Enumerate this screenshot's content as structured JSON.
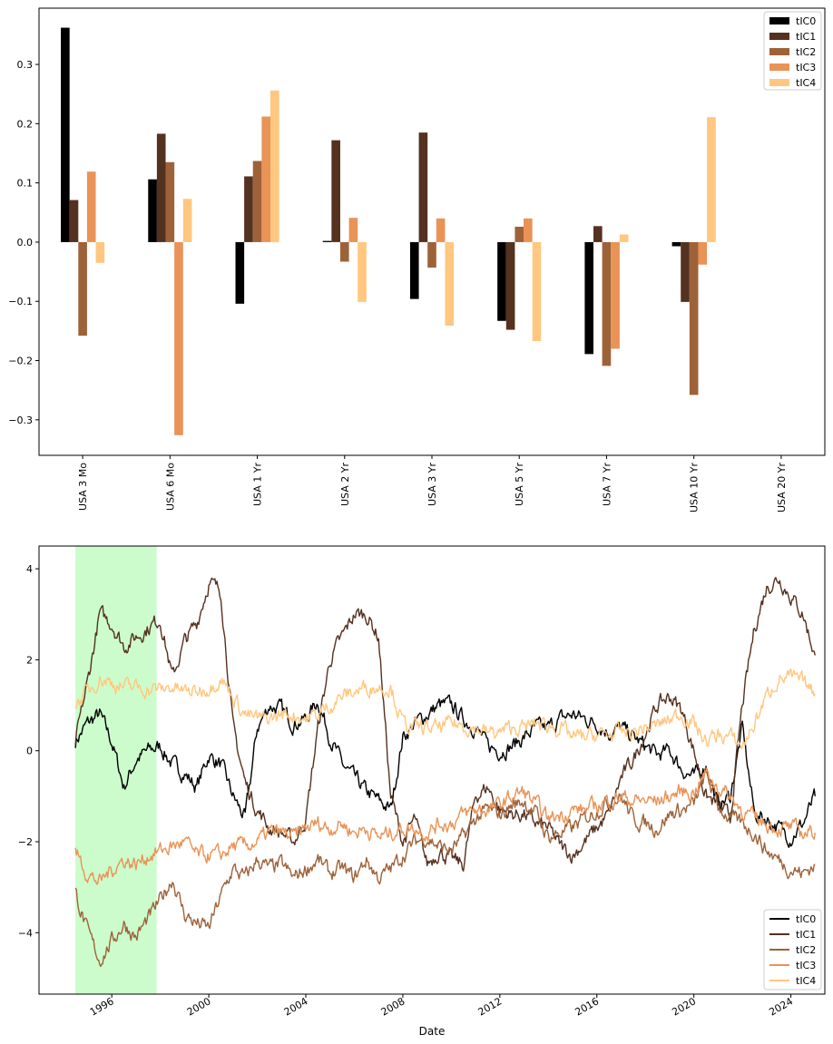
{
  "chart_data": [
    {
      "type": "bar",
      "title": "",
      "xlabel": "",
      "ylabel": "",
      "ylim": [
        -0.36,
        0.395
      ],
      "yticks": [
        -0.3,
        -0.2,
        -0.1,
        0.0,
        0.1,
        0.2,
        0.3
      ],
      "ytick_labels": [
        "−0.3",
        "−0.2",
        "−0.1",
        "0.0",
        "0.1",
        "0.2",
        "0.3"
      ],
      "grid": false,
      "legend_position": "top-right",
      "categories": [
        "USA 3 Mo",
        "USA 6 Mo",
        "USA 1 Yr",
        "USA 2 Yr",
        "USA 3 Yr",
        "USA 5 Yr",
        "USA 7 Yr",
        "USA 10 Yr",
        "USA 20 Yr"
      ],
      "series": [
        {
          "name": "tIC0",
          "color": "#000000",
          "values": [
            0.362,
            0.106,
            -0.104,
            0.002,
            -0.096,
            -0.133,
            -0.189,
            -0.007,
            0.0
          ]
        },
        {
          "name": "tIC1",
          "color": "#55311f",
          "values": [
            0.071,
            0.183,
            0.111,
            0.172,
            0.185,
            -0.148,
            0.027,
            -0.101,
            0.0
          ]
        },
        {
          "name": "tIC2",
          "color": "#9e6239",
          "values": [
            -0.158,
            0.135,
            0.137,
            -0.033,
            -0.043,
            0.026,
            -0.209,
            -0.258,
            0.0
          ]
        },
        {
          "name": "tIC3",
          "color": "#e99357",
          "values": [
            0.119,
            -0.326,
            0.212,
            0.041,
            0.04,
            0.04,
            -0.18,
            -0.038,
            0.0
          ]
        },
        {
          "name": "tIC4",
          "color": "#ffc77f",
          "values": [
            -0.035,
            0.073,
            0.256,
            -0.101,
            -0.141,
            -0.167,
            0.013,
            0.211,
            0.0
          ]
        }
      ]
    },
    {
      "type": "line",
      "title": "",
      "xlabel": "Date",
      "ylabel": "",
      "xlim": [
        1993.0,
        2025.4
      ],
      "ylim": [
        -5.35,
        4.5
      ],
      "xticks": [
        1996,
        2000,
        2004,
        2008,
        2012,
        2016,
        2020,
        2024
      ],
      "xtick_labels": [
        "1996",
        "2000",
        "2004",
        "2008",
        "2012",
        "2016",
        "2020",
        "2024"
      ],
      "yticks": [
        -4,
        -2,
        0,
        2,
        4
      ],
      "ytick_labels": [
        "−4",
        "−2",
        "0",
        "2",
        "4"
      ],
      "grid": false,
      "legend_position": "bottom-right",
      "highlight_span": {
        "start": 1994.5,
        "end": 1997.85,
        "color": "#ccfccc"
      },
      "x": [
        1994.5,
        1995.0,
        1995.5,
        1996.0,
        1996.5,
        1997.0,
        1997.5,
        1998.0,
        1998.5,
        1999.0,
        1999.5,
        2000.0,
        2000.5,
        2001.0,
        2001.5,
        2002.0,
        2002.5,
        2003.0,
        2003.5,
        2004.0,
        2004.5,
        2005.0,
        2005.5,
        2006.0,
        2006.5,
        2007.0,
        2007.5,
        2008.0,
        2008.5,
        2009.0,
        2009.5,
        2010.0,
        2010.5,
        2011.0,
        2011.5,
        2012.0,
        2012.5,
        2013.0,
        2013.5,
        2014.0,
        2014.5,
        2015.0,
        2015.5,
        2016.0,
        2016.5,
        2017.0,
        2017.5,
        2018.0,
        2018.5,
        2019.0,
        2019.5,
        2020.0,
        2020.5,
        2021.0,
        2021.5,
        2022.0,
        2022.5,
        2023.0,
        2023.5,
        2024.0,
        2024.5,
        2025.0
      ],
      "series": [
        {
          "name": "tIC0",
          "color": "#000000",
          "values": [
            0.2,
            0.6,
            0.8,
            0.2,
            -0.8,
            -0.2,
            0.0,
            0.1,
            -0.3,
            -0.5,
            -0.8,
            -0.1,
            -0.3,
            -1.0,
            -1.5,
            0.5,
            1.0,
            0.9,
            0.6,
            0.7,
            1.1,
            0.3,
            -0.3,
            -0.6,
            -0.9,
            -1.1,
            -1.3,
            0.3,
            0.6,
            0.8,
            1.0,
            1.0,
            0.7,
            0.5,
            0.1,
            0.0,
            0.1,
            0.3,
            0.5,
            0.5,
            0.7,
            0.8,
            0.7,
            0.6,
            0.4,
            0.5,
            0.3,
            0.1,
            -0.1,
            0.0,
            -0.4,
            -0.6,
            -0.3,
            -1.2,
            -1.0,
            0.5,
            -1.4,
            -1.5,
            -1.7,
            -1.9,
            -1.6,
            -1.0
          ]
        },
        {
          "name": "tIC1",
          "color": "#55311f",
          "values": [
            0.2,
            1.5,
            3.0,
            2.8,
            2.3,
            2.5,
            2.7,
            2.9,
            1.6,
            2.4,
            2.8,
            3.7,
            3.5,
            0.5,
            -0.7,
            -1.3,
            -1.7,
            -1.8,
            -2.0,
            -1.5,
            0.5,
            2.0,
            2.5,
            3.0,
            3.0,
            2.5,
            -1.0,
            -2.0,
            -1.5,
            -2.5,
            -2.2,
            -2.4,
            -2.5,
            -1.0,
            -0.8,
            -1.3,
            -1.4,
            -1.4,
            -1.6,
            -1.7,
            -2.1,
            -2.3,
            -2.0,
            -1.7,
            -1.4,
            -0.6,
            -0.2,
            0.4,
            1.0,
            1.2,
            0.9,
            0.0,
            -1.0,
            -1.2,
            -1.5,
            1.0,
            2.7,
            3.6,
            3.8,
            3.4,
            3.0,
            2.1
          ]
        },
        {
          "name": "tIC2",
          "color": "#9e6239",
          "values": [
            -3.1,
            -4.0,
            -4.6,
            -4.2,
            -3.8,
            -4.1,
            -3.7,
            -3.3,
            -2.8,
            -3.6,
            -3.8,
            -3.9,
            -3.2,
            -2.6,
            -2.8,
            -2.4,
            -2.6,
            -2.5,
            -2.8,
            -2.6,
            -2.4,
            -2.7,
            -2.6,
            -2.8,
            -2.4,
            -2.8,
            -2.6,
            -2.3,
            -2.0,
            -1.9,
            -2.1,
            -2.2,
            -1.9,
            -1.5,
            -1.3,
            -1.4,
            -1.2,
            -1.1,
            -1.4,
            -1.9,
            -1.8,
            -1.7,
            -1.5,
            -1.3,
            -1.1,
            -1.0,
            -1.5,
            -1.6,
            -1.7,
            -1.4,
            -1.3,
            -1.2,
            -0.5,
            -1.2,
            -1.5,
            -1.6,
            -1.8,
            -2.2,
            -2.4,
            -2.6,
            -2.7,
            -2.5
          ]
        },
        {
          "name": "tIC3",
          "color": "#e99357",
          "values": [
            -2.2,
            -2.7,
            -2.9,
            -2.6,
            -2.4,
            -2.5,
            -2.3,
            -2.2,
            -2.1,
            -2.0,
            -2.3,
            -2.3,
            -2.3,
            -2.1,
            -2.1,
            -2.0,
            -1.8,
            -1.8,
            -1.9,
            -1.7,
            -1.6,
            -1.7,
            -1.6,
            -1.8,
            -1.7,
            -1.9,
            -1.8,
            -1.7,
            -1.7,
            -1.8,
            -1.6,
            -1.6,
            -1.4,
            -1.3,
            -1.3,
            -1.2,
            -1.0,
            -0.9,
            -1.2,
            -1.5,
            -1.4,
            -1.3,
            -1.3,
            -1.2,
            -1.1,
            -1.0,
            -1.1,
            -1.1,
            -1.1,
            -1.0,
            -0.9,
            -0.9,
            -0.5,
            -0.8,
            -1.0,
            -1.3,
            -1.5,
            -1.6,
            -1.7,
            -1.7,
            -1.8,
            -1.8
          ]
        },
        {
          "name": "tIC4",
          "color": "#ffc77f",
          "values": [
            1.0,
            1.3,
            1.6,
            1.5,
            1.4,
            1.4,
            1.35,
            1.35,
            1.4,
            1.3,
            1.3,
            1.4,
            1.6,
            1.2,
            0.8,
            0.7,
            0.7,
            0.8,
            0.8,
            0.7,
            0.8,
            1.0,
            1.2,
            1.3,
            1.4,
            1.4,
            1.4,
            0.6,
            0.5,
            0.5,
            0.5,
            0.6,
            0.55,
            0.5,
            0.4,
            0.4,
            0.5,
            0.5,
            0.6,
            0.55,
            0.5,
            0.3,
            0.3,
            0.35,
            0.35,
            0.4,
            0.4,
            0.5,
            0.55,
            0.7,
            0.8,
            0.6,
            0.2,
            0.35,
            0.3,
            0.1,
            0.6,
            1.2,
            1.6,
            1.6,
            1.5,
            1.25
          ]
        }
      ]
    }
  ]
}
